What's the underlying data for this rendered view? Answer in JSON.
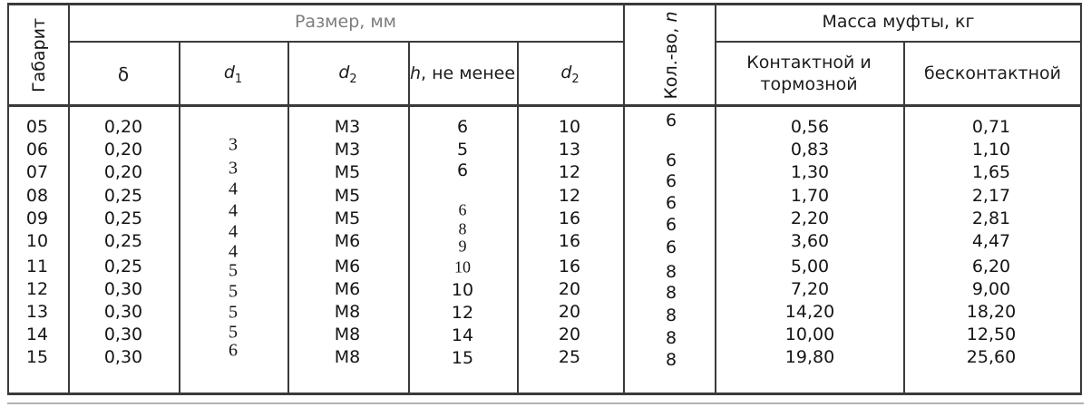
{
  "table": {
    "header": {
      "gabarit": "Габарит",
      "razmer": "Размер, мм",
      "kolvo_prefix": "Кол.-во, ",
      "kolvo_var": "n",
      "massa": "Масса муфты, кг",
      "sub": {
        "delta": "δ",
        "d1_base": "d",
        "d1_sub": "1",
        "d2a_base": "d",
        "d2a_sub": "2",
        "h_var": "h",
        "h_rest": ", не менее",
        "d2b_base": "d",
        "d2b_sub": "2",
        "mass_contact_line1": "Контактной и",
        "mass_contact_line2": "тормозной",
        "mass_contactless": "бесконтактной"
      }
    },
    "columns": {
      "gabarit": [
        "05",
        "06",
        "07",
        "08",
        "09",
        "10",
        "11",
        "12",
        "13",
        "14",
        "15"
      ],
      "delta": [
        "0,20",
        "0,20",
        "0,20",
        "0,25",
        "0,25",
        "0,25",
        "0,25",
        "0,30",
        "0,30",
        "0,30",
        "0,30"
      ],
      "d1": [
        "3",
        "3",
        "4",
        "4",
        "4",
        "4",
        "5",
        "5",
        "5",
        "5",
        "6"
      ],
      "d2a": [
        "M3",
        "M3",
        "M5",
        "M5",
        "M5",
        "M6",
        "M6",
        "M6",
        "M8",
        "M8",
        "M8"
      ],
      "h": [
        "6",
        "5",
        "6",
        "6",
        "8",
        "9",
        "10",
        "10",
        "12",
        "14",
        "15"
      ],
      "d2b": [
        "10",
        "13",
        "12",
        "12",
        "16",
        "16",
        "16",
        "20",
        "20",
        "20",
        "25"
      ],
      "n": [
        "6",
        "6",
        "6",
        "6",
        "6",
        "6",
        "8",
        "8",
        "8",
        "8",
        "8"
      ],
      "mass_contact": [
        "0,56",
        "0,83",
        "1,30",
        "1,70",
        "2,20",
        "3,60",
        "5,00",
        "7,20",
        "14,20",
        "10,00",
        "19,80"
      ],
      "mass_contactless": [
        "0,71",
        "1,10",
        "1,65",
        "2,17",
        "2,81",
        "4,47",
        "6,20",
        "9,00",
        "18,20",
        "12,50",
        "25,60"
      ]
    }
  }
}
